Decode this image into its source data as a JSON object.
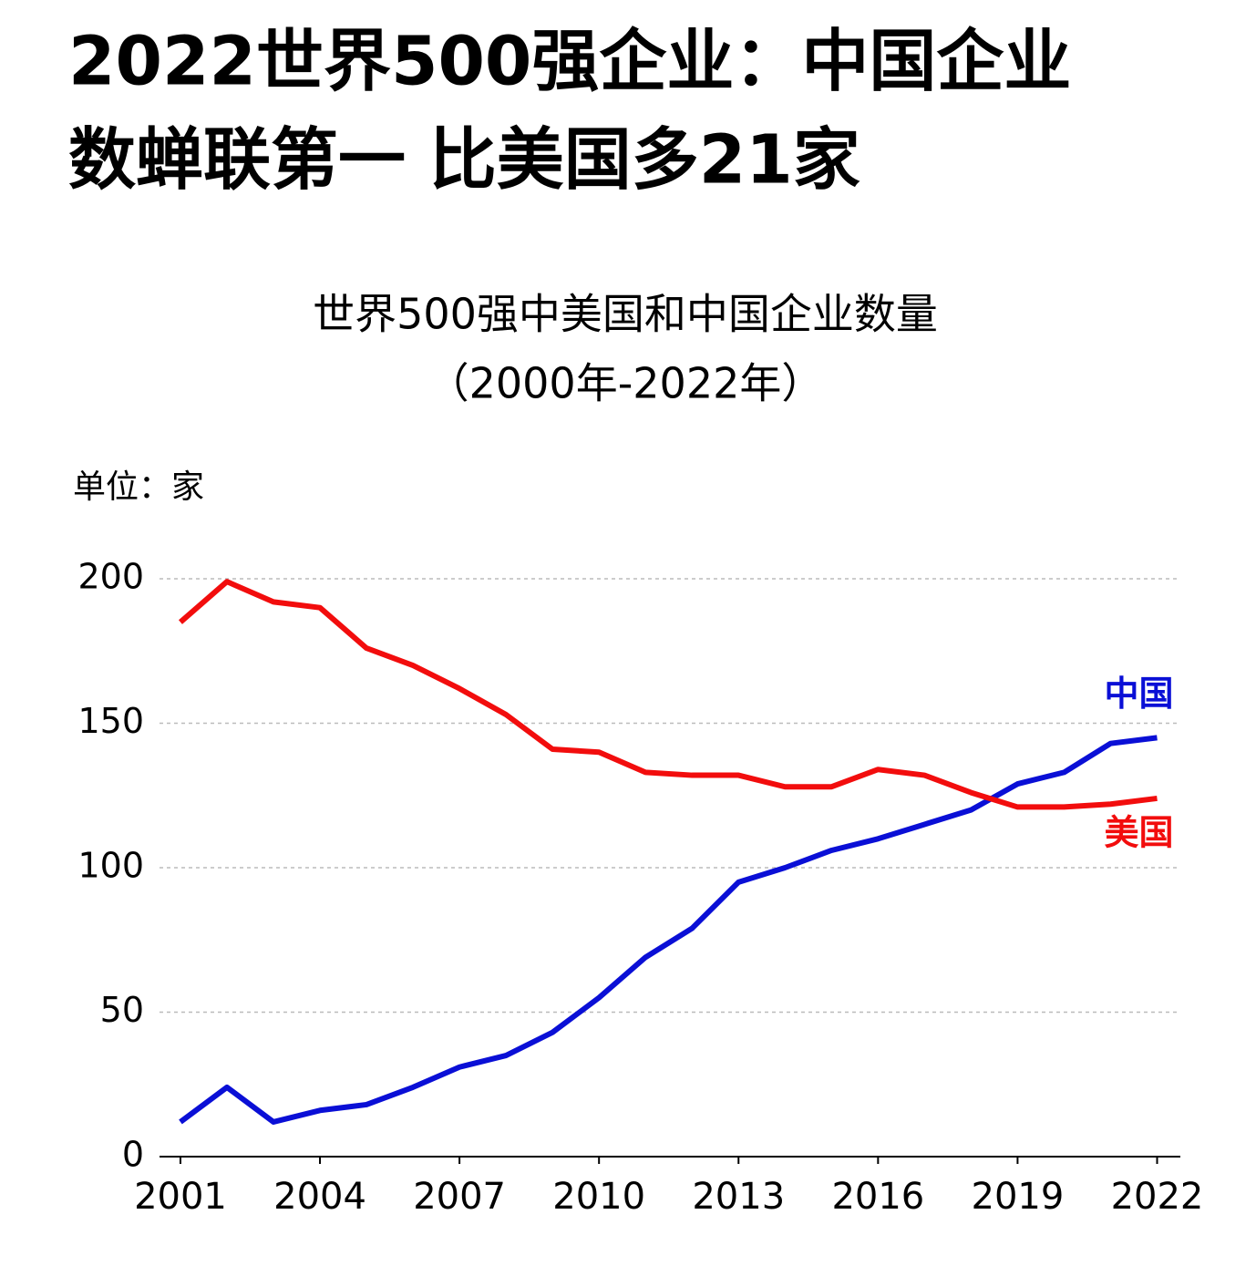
{
  "chart_data": {
    "type": "line",
    "title": [
      "2022世界500强企业：中国企业",
      "数蝉联第一  比美国多21家"
    ],
    "subtitle": [
      "世界500强中美国和中国企业数量",
      "（2000年-2022年）"
    ],
    "y_unit": "单位：家",
    "x": [
      2001,
      2002,
      2003,
      2004,
      2005,
      2006,
      2007,
      2008,
      2009,
      2010,
      2011,
      2012,
      2013,
      2014,
      2015,
      2016,
      2017,
      2018,
      2019,
      2020,
      2021,
      2022
    ],
    "series": [
      {
        "name": "中国",
        "color": "#0a0fd6",
        "values": [
          12,
          24,
          12,
          16,
          18,
          24,
          31,
          35,
          43,
          55,
          69,
          79,
          95,
          100,
          106,
          110,
          115,
          120,
          129,
          133,
          143,
          145
        ]
      },
      {
        "name": "美国",
        "color": "#f20d0d",
        "values": [
          185,
          199,
          192,
          190,
          176,
          170,
          162,
          153,
          141,
          140,
          133,
          132,
          132,
          128,
          128,
          134,
          132,
          126,
          121,
          121,
          122,
          124
        ]
      }
    ],
    "xlim": [
      2000.55,
      2022.5
    ],
    "xticks": [
      2001,
      2004,
      2007,
      2010,
      2013,
      2016,
      2019,
      2022
    ],
    "ylim": [
      0,
      200
    ],
    "yticks": [
      0,
      50,
      100,
      150,
      200
    ],
    "grid": true
  }
}
